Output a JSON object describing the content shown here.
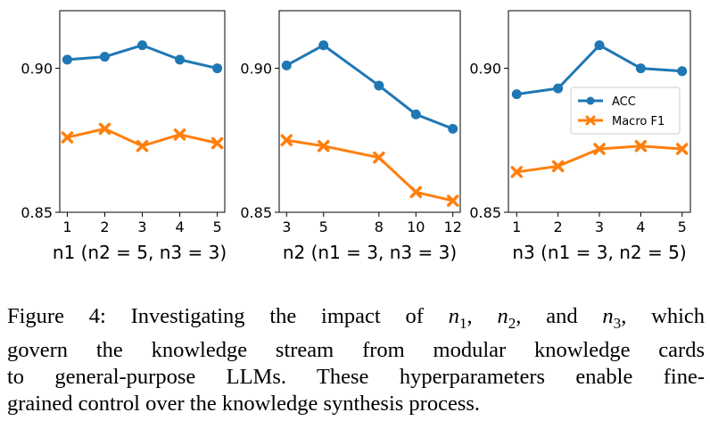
{
  "chart_data": [
    {
      "type": "line",
      "xlabel": "n1 (n2 = 5, n3 = 3)",
      "x": [
        1,
        2,
        3,
        4,
        5
      ],
      "xticks": [
        "1",
        "2",
        "3",
        "4",
        "5"
      ],
      "ylim": [
        0.85,
        0.92
      ],
      "yticks": [
        "0.85",
        "0.90"
      ],
      "grid": false,
      "series": [
        {
          "name": "ACC",
          "values": [
            0.903,
            0.904,
            0.908,
            0.903,
            0.9
          ]
        },
        {
          "name": "Macro F1",
          "values": [
            0.876,
            0.879,
            0.873,
            0.877,
            0.874
          ]
        }
      ]
    },
    {
      "type": "line",
      "xlabel": "n2 (n1 = 3, n3 = 3)",
      "x": [
        3,
        5,
        8,
        10,
        12
      ],
      "xticks": [
        "3",
        "5",
        "8",
        "10",
        "12"
      ],
      "ylim": [
        0.85,
        0.92
      ],
      "yticks": [
        "0.85",
        "0.90"
      ],
      "grid": false,
      "series": [
        {
          "name": "ACC",
          "values": [
            0.901,
            0.908,
            0.894,
            0.884,
            0.879
          ]
        },
        {
          "name": "Macro F1",
          "values": [
            0.875,
            0.873,
            0.869,
            0.857,
            0.854
          ]
        }
      ]
    },
    {
      "type": "line",
      "xlabel": "n3 (n1 = 3, n2 = 5)",
      "x": [
        1,
        2,
        3,
        4,
        5
      ],
      "xticks": [
        "1",
        "2",
        "3",
        "4",
        "5"
      ],
      "ylim": [
        0.85,
        0.92
      ],
      "yticks": [
        "0.85",
        "0.90"
      ],
      "grid": false,
      "legend": {
        "placement": "center-right",
        "entries": [
          "ACC",
          "Macro F1"
        ]
      },
      "series": [
        {
          "name": "ACC",
          "values": [
            0.891,
            0.893,
            0.908,
            0.9,
            0.899
          ]
        },
        {
          "name": "Macro F1",
          "values": [
            0.864,
            0.866,
            0.872,
            0.873,
            0.872
          ]
        }
      ]
    }
  ],
  "colors": {
    "acc": "#1f77b4",
    "f1": "#ff7f0e"
  },
  "caption": {
    "lines": [
      "Figure 4: Investigating the impact of",
      "govern the knowledge stream from modular knowledge cards",
      "to general-purpose LLMs. These hyperparameters enable fine-",
      "grained control over the knowledge synthesis process."
    ],
    "var_1": "n1",
    "sep_1": ", ",
    "var_2": "n2",
    "sep_2": ", and ",
    "var_3": "n3",
    "tail": ", which"
  }
}
